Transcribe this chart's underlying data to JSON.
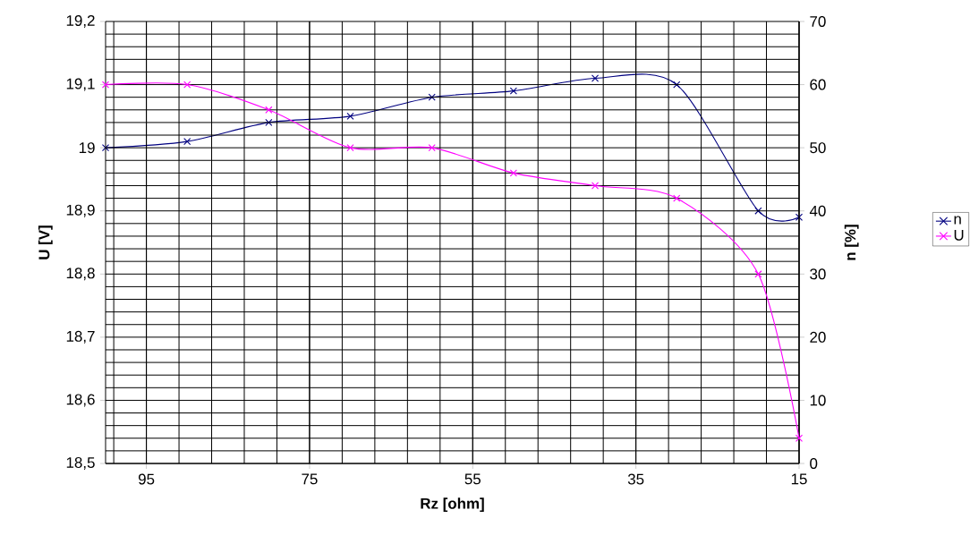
{
  "chart_data": {
    "type": "line",
    "xlabel": "Rz [ohm]",
    "ylabel": "U [V]",
    "y2label": "n [%]",
    "x": [
      100,
      90,
      80,
      70,
      60,
      50,
      40,
      30,
      20,
      15
    ],
    "xlim": [
      100,
      15
    ],
    "xticks": [
      95,
      75,
      55,
      35,
      15
    ],
    "ylim": [
      18.5,
      19.2
    ],
    "yticks": [
      {
        "value": 18.5,
        "label": "18,5"
      },
      {
        "value": 18.6,
        "label": "18,6"
      },
      {
        "value": 18.7,
        "label": "18,7"
      },
      {
        "value": 18.8,
        "label": "18,8"
      },
      {
        "value": 18.9,
        "label": "18,9"
      },
      19,
      {
        "value": 19.1,
        "label": "19,1"
      },
      {
        "value": 19.2,
        "label": "19,2"
      }
    ],
    "y2lim": [
      0,
      70
    ],
    "y2ticks": [
      0,
      10,
      20,
      30,
      40,
      50,
      60,
      70
    ],
    "series": [
      {
        "name": "n",
        "color": "#000080",
        "axis": "y2",
        "values": [
          50,
          51,
          54,
          55,
          58,
          59,
          61,
          60,
          40,
          39
        ]
      },
      {
        "name": "U",
        "color": "#ff00ff",
        "values": [
          19.1,
          19.1,
          19.06,
          19.0,
          19.0,
          18.96,
          18.94,
          18.92,
          18.8,
          18.54
        ]
      }
    ],
    "grid": true,
    "legend": "right",
    "marker": "cross",
    "line_style": "solid"
  }
}
